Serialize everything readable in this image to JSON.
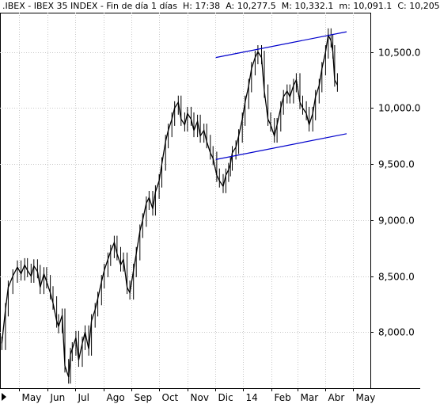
{
  "header": {
    "symbol": ".IBEX - IBEX 35 INDEX",
    "period": "Fin de día 1 días",
    "hour": "H: 17:38",
    "open": "A: 10,277.5",
    "high": "M: 10,332.1",
    "low": "m: 10,091.1",
    "close": "C: 10,205"
  },
  "colors": {
    "price": "#000000",
    "channel": "#0000cc",
    "grid": "#c8c8c8",
    "background": "#ffffff"
  },
  "chart_data": {
    "type": "line",
    "title": ".IBEX - IBEX 35 INDEX",
    "y_ticks": [
      8000,
      8500,
      9000,
      9500,
      10000,
      10500
    ],
    "y_tick_labels": [
      "8,000.0",
      "8,500.0",
      "9,000.0",
      "9,500.0",
      "10,000.0",
      "10,500.0"
    ],
    "ylim": [
      7500,
      10850
    ],
    "xlim": [
      "2013-04-10",
      "2014-05-20"
    ],
    "x_ticks": [
      {
        "date": "2013-05-01",
        "label": "May"
      },
      {
        "date": "2013-06-01",
        "label": "Jun"
      },
      {
        "date": "2013-07-01",
        "label": "Jul"
      },
      {
        "date": "2013-08-01",
        "label": "Ago"
      },
      {
        "date": "2013-09-01",
        "label": "Sep"
      },
      {
        "date": "2013-10-01",
        "label": "Oct"
      },
      {
        "date": "2013-11-01",
        "label": "Nov"
      },
      {
        "date": "2013-12-01",
        "label": "Dic"
      },
      {
        "date": "2014-01-01",
        "label": "14"
      },
      {
        "date": "2014-02-01",
        "label": "Feb"
      },
      {
        "date": "2014-03-01",
        "label": "Mar"
      },
      {
        "date": "2014-04-01",
        "label": "Abr"
      },
      {
        "date": "2014-05-01",
        "label": "May"
      }
    ],
    "grid": true,
    "series": [
      {
        "points": [
          [
            "2013-04-12",
            7900
          ],
          [
            "2013-04-16",
            8200
          ],
          [
            "2013-04-19",
            8400
          ],
          [
            "2013-04-24",
            8500
          ],
          [
            "2013-04-29",
            8580
          ],
          [
            "2013-05-03",
            8520
          ],
          [
            "2013-05-07",
            8600
          ],
          [
            "2013-05-10",
            8550
          ],
          [
            "2013-05-14",
            8500
          ],
          [
            "2013-05-17",
            8590
          ],
          [
            "2013-05-21",
            8540
          ],
          [
            "2013-05-24",
            8400
          ],
          [
            "2013-05-28",
            8520
          ],
          [
            "2013-05-31",
            8450
          ],
          [
            "2013-06-04",
            8350
          ],
          [
            "2013-06-07",
            8260
          ],
          [
            "2013-06-11",
            8100
          ],
          [
            "2013-06-13",
            8050
          ],
          [
            "2013-06-17",
            8150
          ],
          [
            "2013-06-20",
            7700
          ],
          [
            "2013-06-24",
            7600
          ],
          [
            "2013-06-26",
            7800
          ],
          [
            "2013-06-28",
            7850
          ],
          [
            "2013-07-02",
            7950
          ],
          [
            "2013-07-05",
            7750
          ],
          [
            "2013-07-09",
            7900
          ],
          [
            "2013-07-12",
            8000
          ],
          [
            "2013-07-16",
            7850
          ],
          [
            "2013-07-19",
            8100
          ],
          [
            "2013-07-23",
            8200
          ],
          [
            "2013-07-26",
            8300
          ],
          [
            "2013-07-30",
            8450
          ],
          [
            "2013-08-02",
            8550
          ],
          [
            "2013-08-06",
            8650
          ],
          [
            "2013-08-09",
            8720
          ],
          [
            "2013-08-13",
            8800
          ],
          [
            "2013-08-16",
            8700
          ],
          [
            "2013-08-20",
            8600
          ],
          [
            "2013-08-23",
            8650
          ],
          [
            "2013-08-27",
            8400
          ],
          [
            "2013-08-30",
            8350
          ],
          [
            "2013-09-03",
            8550
          ],
          [
            "2013-09-06",
            8700
          ],
          [
            "2013-09-10",
            8900
          ],
          [
            "2013-09-13",
            9000
          ],
          [
            "2013-09-17",
            9150
          ],
          [
            "2013-09-20",
            9200
          ],
          [
            "2013-09-24",
            9100
          ],
          [
            "2013-09-27",
            9250
          ],
          [
            "2013-10-01",
            9350
          ],
          [
            "2013-10-04",
            9500
          ],
          [
            "2013-10-08",
            9700
          ],
          [
            "2013-10-11",
            9800
          ],
          [
            "2013-10-15",
            9900
          ],
          [
            "2013-10-18",
            10000
          ],
          [
            "2013-10-22",
            10050
          ],
          [
            "2013-10-25",
            9900
          ],
          [
            "2013-10-29",
            9850
          ],
          [
            "2013-11-01",
            9950
          ],
          [
            "2013-11-05",
            9900
          ],
          [
            "2013-11-08",
            9800
          ],
          [
            "2013-11-12",
            9880
          ],
          [
            "2013-11-15",
            9750
          ],
          [
            "2013-11-19",
            9800
          ],
          [
            "2013-11-22",
            9700
          ],
          [
            "2013-11-26",
            9600
          ],
          [
            "2013-11-29",
            9550
          ],
          [
            "2013-12-03",
            9400
          ],
          [
            "2013-12-06",
            9350
          ],
          [
            "2013-12-10",
            9300
          ],
          [
            "2013-12-13",
            9400
          ],
          [
            "2013-12-16",
            9450
          ],
          [
            "2013-12-18",
            9500
          ],
          [
            "2013-12-20",
            9600
          ],
          [
            "2013-12-24",
            9650
          ],
          [
            "2013-12-27",
            9750
          ],
          [
            "2013-12-31",
            9900
          ],
          [
            "2014-01-03",
            10050
          ],
          [
            "2014-01-07",
            10200
          ],
          [
            "2014-01-10",
            10350
          ],
          [
            "2014-01-14",
            10450
          ],
          [
            "2014-01-17",
            10500
          ],
          [
            "2014-01-21",
            10450
          ],
          [
            "2014-01-24",
            10150
          ],
          [
            "2014-01-28",
            9900
          ],
          [
            "2014-01-31",
            9850
          ],
          [
            "2014-02-04",
            9750
          ],
          [
            "2014-02-07",
            9850
          ],
          [
            "2014-02-11",
            10000
          ],
          [
            "2014-02-14",
            10100
          ],
          [
            "2014-02-18",
            10150
          ],
          [
            "2014-02-21",
            10100
          ],
          [
            "2014-02-25",
            10200
          ],
          [
            "2014-02-28",
            10250
          ],
          [
            "2014-03-04",
            10050
          ],
          [
            "2014-03-07",
            10000
          ],
          [
            "2014-03-11",
            9950
          ],
          [
            "2014-03-14",
            9850
          ],
          [
            "2014-03-18",
            9950
          ],
          [
            "2014-03-21",
            10100
          ],
          [
            "2014-03-25",
            10200
          ],
          [
            "2014-03-28",
            10350
          ],
          [
            "2014-04-01",
            10500
          ],
          [
            "2014-04-04",
            10650
          ],
          [
            "2014-04-07",
            10600
          ],
          [
            "2014-04-09",
            10500
          ],
          [
            "2014-04-11",
            10250
          ],
          [
            "2014-04-14",
            10205
          ]
        ]
      }
    ],
    "channel_lines": [
      {
        "from": [
          "2013-12-02",
          10450
        ],
        "to": [
          "2014-04-24",
          10680
        ]
      },
      {
        "from": [
          "2013-12-02",
          9540
        ],
        "to": [
          "2014-04-24",
          9770
        ]
      }
    ]
  }
}
